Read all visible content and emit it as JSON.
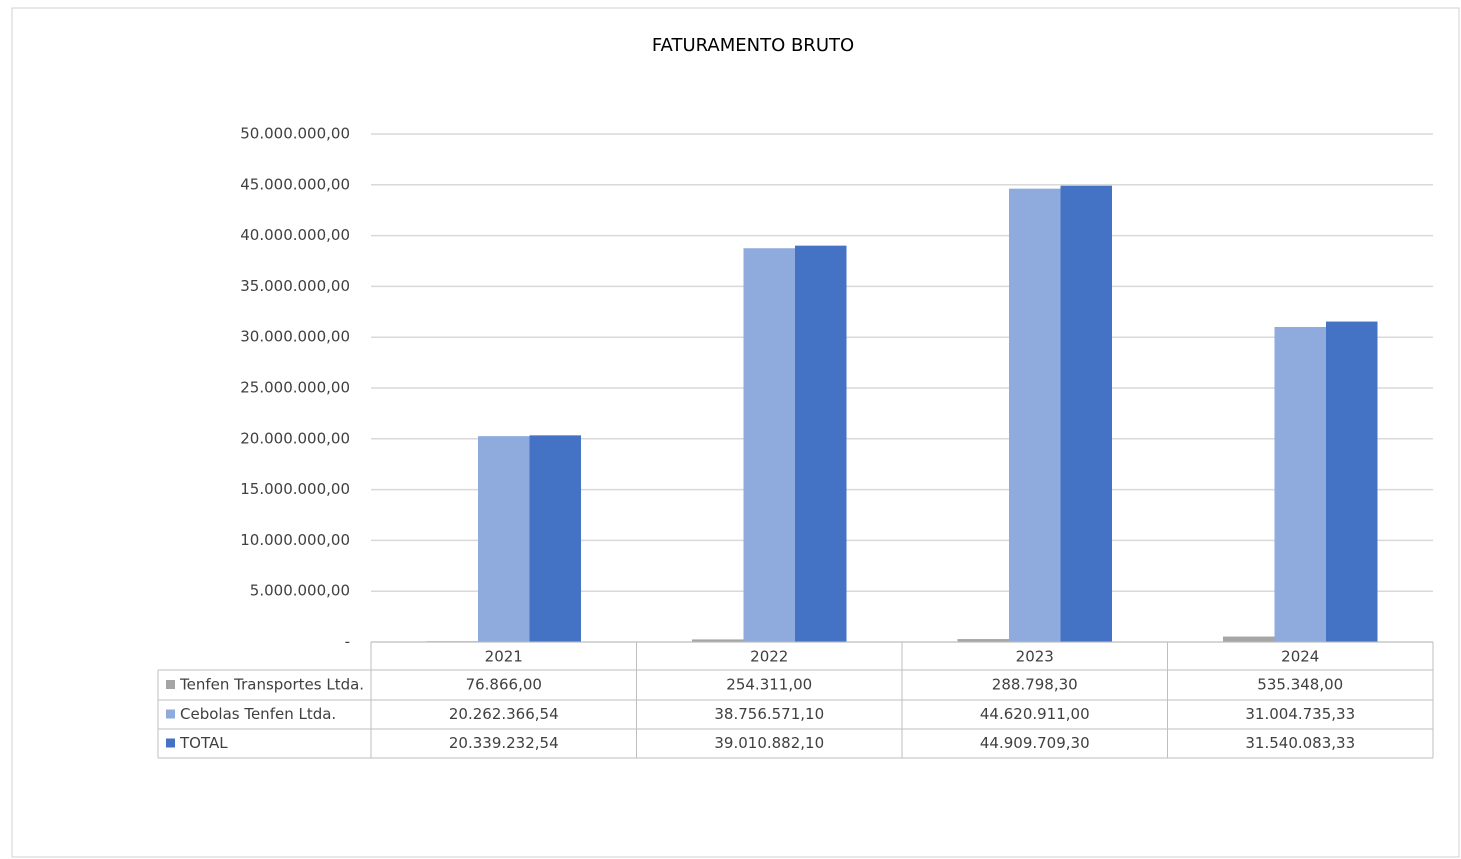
{
  "chart_data": {
    "type": "bar",
    "title": "FATURAMENTO BRUTO",
    "categories": [
      "2021",
      "2022",
      "2023",
      "2024"
    ],
    "series": [
      {
        "name": "Tenfen Transportes Ltda.",
        "color": "#a5a5a5",
        "values": [
          76866,
          254311,
          288798.3,
          535348
        ],
        "value_labels": [
          "76.866,00",
          "254.311,00",
          "288.798,30",
          "535.348,00"
        ]
      },
      {
        "name": "Cebolas Tenfen Ltda.",
        "color": "#8faadc",
        "values": [
          20262366.54,
          38756571.1,
          44620911,
          31004735.33
        ],
        "value_labels": [
          "20.262.366,54",
          "38.756.571,10",
          "44.620.911,00",
          "31.004.735,33"
        ]
      },
      {
        "name": "TOTAL",
        "color": "#4472c4",
        "values": [
          20339232.54,
          39010882.1,
          44909709.3,
          31540083.33
        ],
        "value_labels": [
          "20.339.232,54",
          "39.010.882,10",
          "44.909.709,30",
          "31.540.083,33"
        ]
      }
    ],
    "ylim": [
      0,
      50000000
    ],
    "yticks": [
      {
        "value": 0,
        "label": "-"
      },
      {
        "value": 5000000,
        "label": "5.000.000,00"
      },
      {
        "value": 10000000,
        "label": "10.000.000,00"
      },
      {
        "value": 15000000,
        "label": "15.000.000,00"
      },
      {
        "value": 20000000,
        "label": "20.000.000,00"
      },
      {
        "value": 25000000,
        "label": "25.000.000,00"
      },
      {
        "value": 30000000,
        "label": "30.000.000,00"
      },
      {
        "value": 35000000,
        "label": "35.000.000,00"
      },
      {
        "value": 40000000,
        "label": "40.000.000,00"
      },
      {
        "value": 45000000,
        "label": "45.000.000,00"
      },
      {
        "value": 50000000,
        "label": "50.000.000,00"
      }
    ],
    "grid": true
  }
}
